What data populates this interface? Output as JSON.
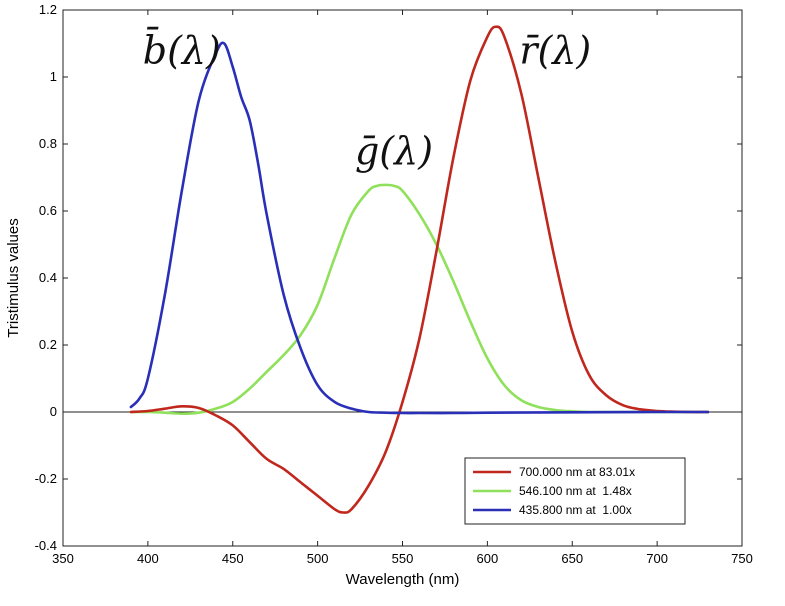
{
  "chart_data": {
    "type": "line",
    "title": "",
    "xlabel": "Wavelength (nm)",
    "ylabel": "Tristimulus values",
    "xlim": [
      350,
      750
    ],
    "ylim": [
      -0.4,
      1.2
    ],
    "xticks": [
      350,
      400,
      450,
      500,
      550,
      600,
      650,
      700,
      750
    ],
    "yticks": [
      -0.4,
      -0.2,
      0,
      0.2,
      0.4,
      0.6,
      0.8,
      1,
      1.2
    ],
    "xtick_labels": [
      "350",
      "400",
      "450",
      "500",
      "550",
      "600",
      "650",
      "700",
      "750"
    ],
    "ytick_labels": [
      "-0.4",
      "-0.2",
      "0",
      "0.2",
      "0.4",
      "0.6",
      "0.8",
      "1",
      "1.2"
    ],
    "zero_line": true,
    "legend_position": "bottom-right",
    "annotations": [
      {
        "base": "b",
        "suffix": "(λ)",
        "color": "#111111",
        "x": 420,
        "y": 1.04
      },
      {
        "base": "g",
        "suffix": "(λ)",
        "color": "#111111",
        "x": 545,
        "y": 0.74
      },
      {
        "base": "r",
        "suffix": "(λ)",
        "color": "#111111",
        "x": 640,
        "y": 1.04
      }
    ],
    "series": [
      {
        "name": "red",
        "legend": "700.000 nm at 83.01x",
        "color": "#c0281e",
        "x": [
          390,
          400,
          410,
          420,
          430,
          440,
          450,
          460,
          470,
          480,
          490,
          500,
          510,
          515,
          520,
          530,
          540,
          550,
          560,
          570,
          580,
          590,
          600,
          605,
          610,
          620,
          630,
          640,
          650,
          660,
          670,
          680,
          690,
          700,
          710,
          720,
          730
        ],
        "values": [
          0.0,
          0.003,
          0.01,
          0.017,
          0.012,
          -0.01,
          -0.04,
          -0.09,
          -0.14,
          -0.17,
          -0.21,
          -0.25,
          -0.29,
          -0.3,
          -0.29,
          -0.22,
          -0.12,
          0.03,
          0.22,
          0.48,
          0.76,
          0.99,
          1.12,
          1.15,
          1.12,
          0.95,
          0.7,
          0.45,
          0.24,
          0.11,
          0.05,
          0.02,
          0.008,
          0.003,
          0.001,
          0.0,
          0.0
        ]
      },
      {
        "name": "green",
        "legend": "546.100 nm at  1.48x",
        "color": "#8fe05a",
        "x": [
          390,
          400,
          410,
          420,
          430,
          440,
          450,
          460,
          470,
          480,
          490,
          500,
          510,
          520,
          530,
          535,
          540,
          545,
          550,
          560,
          570,
          580,
          590,
          600,
          610,
          620,
          630,
          640,
          650,
          660,
          680,
          700,
          730
        ],
        "values": [
          0.0,
          0.0,
          -0.002,
          -0.005,
          -0.002,
          0.01,
          0.03,
          0.07,
          0.12,
          0.17,
          0.23,
          0.32,
          0.46,
          0.59,
          0.66,
          0.675,
          0.678,
          0.675,
          0.66,
          0.59,
          0.5,
          0.39,
          0.27,
          0.16,
          0.08,
          0.035,
          0.015,
          0.006,
          0.002,
          0.0,
          0.0,
          0.0,
          0.0
        ]
      },
      {
        "name": "blue",
        "legend": "435.800 nm at  1.00x",
        "color": "#2a2fb8",
        "x": [
          390,
          395,
          400,
          410,
          420,
          430,
          440,
          445,
          450,
          455,
          460,
          465,
          470,
          480,
          490,
          500,
          510,
          520,
          530,
          540,
          550,
          560,
          580,
          600,
          650,
          700,
          730
        ],
        "values": [
          0.015,
          0.04,
          0.1,
          0.35,
          0.66,
          0.93,
          1.07,
          1.1,
          1.03,
          0.94,
          0.87,
          0.74,
          0.59,
          0.35,
          0.19,
          0.08,
          0.03,
          0.01,
          0.0,
          -0.002,
          -0.003,
          -0.003,
          -0.003,
          -0.002,
          -0.001,
          0.0,
          0.0
        ]
      }
    ]
  }
}
